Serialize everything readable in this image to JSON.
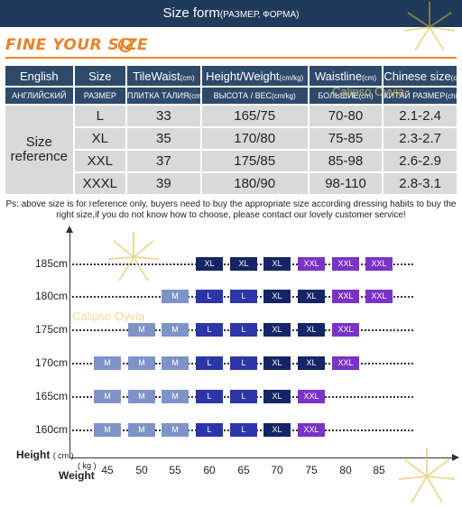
{
  "banner": {
    "title": "Size form",
    "subtitle": "(РАЗМЕР, ФОРМА)"
  },
  "heading": "FINE YOUR SIZE",
  "watermark": "Calipso Oyvia",
  "table": {
    "header_en": [
      {
        "text": "English",
        "unit": ""
      },
      {
        "text": "Size",
        "unit": ""
      },
      {
        "text": "TileWaist",
        "unit": "(cm)"
      },
      {
        "text": "Height/Weight",
        "unit": "(cm/kg)"
      },
      {
        "text": "Waistline",
        "unit": "(cm)"
      },
      {
        "text": "Chinese size",
        "unit": "(chi)"
      }
    ],
    "header_ru": [
      {
        "text": "АНГЛИЙСКИЙ",
        "unit": ""
      },
      {
        "text": "РАЗМЕР",
        "unit": ""
      },
      {
        "text": "ПЛИТКА ТАЛИЯ",
        "unit": "(cm)"
      },
      {
        "text": "ВЫСОТА / ВЕС",
        "unit": "(cm/kg)"
      },
      {
        "text": "БОЛЬШИЕ",
        "unit": "(cm)"
      },
      {
        "text": "КИТАЙ РАЗМЕР",
        "unit": "(chi)"
      }
    ],
    "row_label": "Size reference",
    "rows": [
      {
        "size": "L",
        "waist": "33",
        "hw": "165/75",
        "waistline": "70-80",
        "chinese": "2.1-2.4"
      },
      {
        "size": "XL",
        "waist": "35",
        "hw": "170/80",
        "waistline": "75-85",
        "chinese": "2.3-2.7"
      },
      {
        "size": "XXL",
        "waist": "37",
        "hw": "175/85",
        "waistline": "85-98",
        "chinese": "2.6-2.9"
      },
      {
        "size": "XXXL",
        "waist": "39",
        "hw": "180/90",
        "waistline": "98-110",
        "chinese": "2.8-3.1"
      }
    ]
  },
  "note": "Ps: above size is for reference only, buyers need to buy the appropriate size according dressing habits to buy the right size,if you do not know how to choose, please contact our lovely customer service!",
  "grid": {
    "height_label": "Height",
    "height_unit": "( cm )",
    "weight_label": "Weight",
    "weight_unit": "( kg )",
    "weights": [
      "45",
      "50",
      "55",
      "60",
      "65",
      "70",
      "75",
      "80",
      "85"
    ],
    "colors": {
      "M": "#8093c8",
      "L": "#2c36a8",
      "XL": "#152566",
      "XXL": "#7a33c6"
    },
    "rows": [
      {
        "height": "185cm",
        "cells": [
          "",
          "",
          "",
          "XL",
          "XL",
          "XL",
          "XXL",
          "XXL",
          "XXL"
        ]
      },
      {
        "height": "180cm",
        "cells": [
          "",
          "",
          "M",
          "L",
          "L",
          "XL",
          "XL",
          "XXL",
          "XXL"
        ]
      },
      {
        "height": "175cm",
        "cells": [
          "",
          "M",
          "M",
          "L",
          "L",
          "XL",
          "XL",
          "XXL",
          ""
        ]
      },
      {
        "height": "170cm",
        "cells": [
          "M",
          "M",
          "M",
          "L",
          "L",
          "XL",
          "XL",
          "XXL",
          ""
        ]
      },
      {
        "height": "165cm",
        "cells": [
          "M",
          "M",
          "M",
          "L",
          "L",
          "XL",
          "XXL",
          "",
          ""
        ]
      },
      {
        "height": "160cm",
        "cells": [
          "M",
          "M",
          "M",
          "L",
          "L",
          "XL",
          "XXL",
          "",
          ""
        ]
      }
    ]
  }
}
